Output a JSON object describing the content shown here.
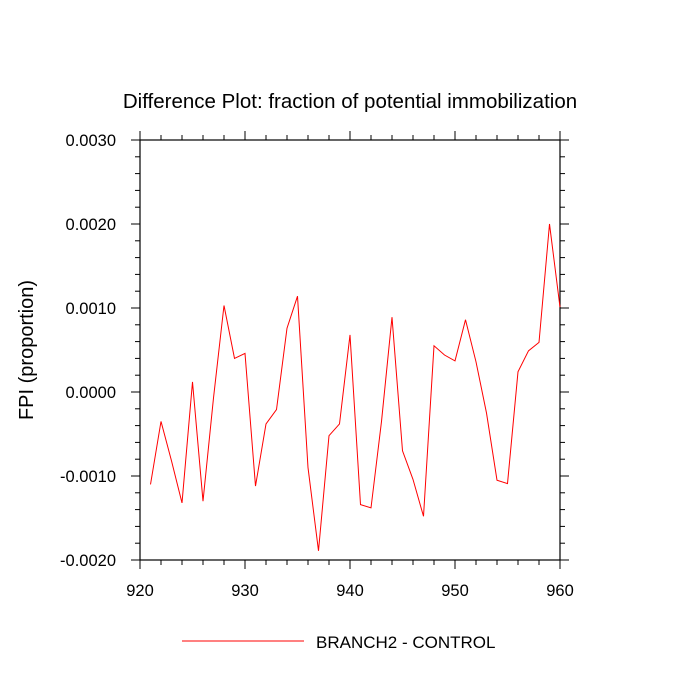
{
  "chart_data": {
    "type": "line",
    "title": "Difference Plot: fraction of potential immobilization",
    "xlabel": "",
    "ylabel": "FPI  (proportion)",
    "xlim": [
      920,
      960
    ],
    "ylim": [
      -0.002,
      0.003
    ],
    "xticks": [
      920,
      930,
      940,
      950,
      960
    ],
    "xtick_labels": [
      "920",
      "930",
      "940",
      "950",
      "960"
    ],
    "yticks": [
      -0.002,
      -0.001,
      0.0,
      0.001,
      0.002,
      0.003
    ],
    "ytick_labels": [
      "-0.0020",
      "-0.0010",
      "0.0000",
      "0.0010",
      "0.0020",
      "0.0030"
    ],
    "grid": false,
    "legend_position": "bottom-center",
    "series": [
      {
        "name": "BRANCH2 - CONTROL",
        "color": "#ff0000",
        "x": [
          921,
          922,
          923,
          924,
          925,
          926,
          927,
          928,
          929,
          930,
          931,
          932,
          933,
          934,
          935,
          936,
          937,
          938,
          939,
          940,
          941,
          942,
          943,
          944,
          945,
          946,
          947,
          948,
          949,
          950,
          951,
          952,
          953,
          954,
          955,
          956,
          957,
          958,
          959,
          960
        ],
        "y": [
          -0.0011,
          -0.00035,
          -0.00082,
          -0.00132,
          0.00012,
          -0.0013,
          -7e-05,
          0.00103,
          0.0004,
          0.00046,
          -0.00112,
          -0.00038,
          -0.00021,
          0.00076,
          0.00114,
          -0.0009,
          -0.00189,
          -0.00052,
          -0.00038,
          0.00068,
          -0.00134,
          -0.00138,
          -0.00035,
          0.00089,
          -0.0007,
          -0.00104,
          -0.00148,
          0.00055,
          0.00044,
          0.00037,
          0.00086,
          0.00036,
          -0.00025,
          -0.00105,
          -0.00109,
          0.00024,
          0.00049,
          0.00059,
          0.002,
          0.00101
        ]
      }
    ]
  }
}
